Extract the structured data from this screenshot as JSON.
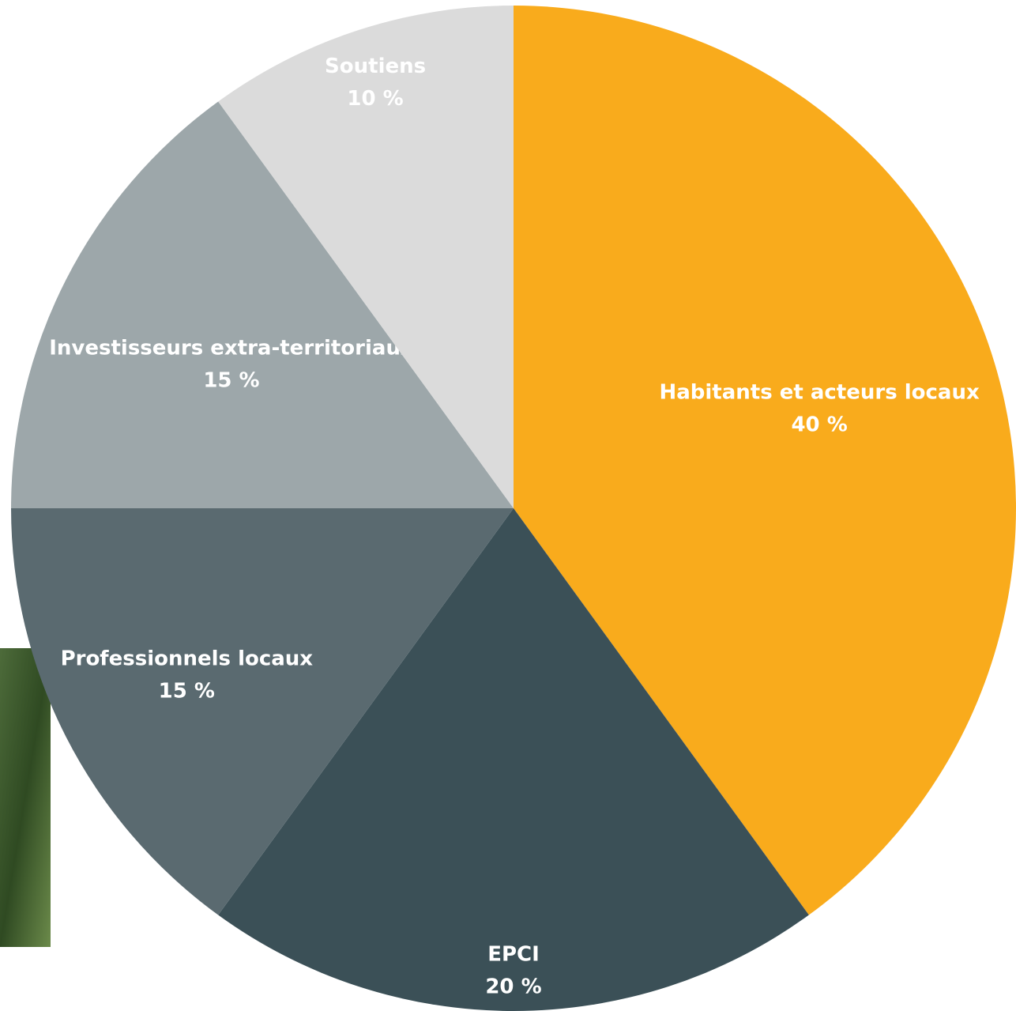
{
  "chart_data": {
    "type": "pie",
    "categories": [
      "Habitants et acteurs locaux",
      "EPCI",
      "Professionnels locaux",
      "Investisseurs extra-territoriaux",
      "Soutiens"
    ],
    "values": [
      40,
      20,
      15,
      15,
      10
    ],
    "value_labels": [
      "40 %",
      "20 %",
      "15 %",
      "15 %",
      "10 %"
    ],
    "colors": [
      "#f9ab1c",
      "#3b5057",
      "#5a6a70",
      "#9da7aa",
      "#dbdbdb"
    ]
  }
}
